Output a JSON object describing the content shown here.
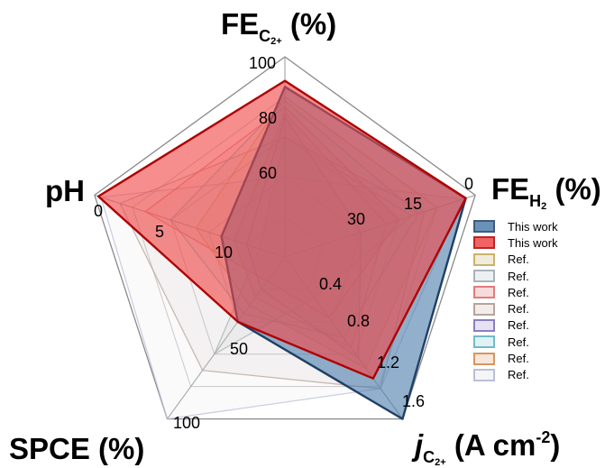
{
  "chart_data": {
    "type": "radar",
    "axes": [
      {
        "key": "fe_c2",
        "title_main": "FE",
        "title_sub": "C",
        "title_subsub": "2+",
        "title_tail": " (%)",
        "range": [
          0,
          100
        ],
        "tick_labels": [
          "60",
          "80",
          "100"
        ]
      },
      {
        "key": "fe_h2",
        "title_main": "FE",
        "title_sub": "H",
        "title_subsub": "2",
        "title_tail": " (%)",
        "range": [
          30,
          0
        ],
        "tick_labels": [
          "30",
          "15",
          "0"
        ]
      },
      {
        "key": "j_c2",
        "title_main": "j",
        "title_sub": "C",
        "title_subsub": "2+",
        "title_tail": " (A cm",
        "title_sup": "-2",
        "title_end": ")",
        "range": [
          0,
          1.6
        ],
        "tick_labels": [
          "0.4",
          "0.8",
          "1.2",
          "1.6"
        ]
      },
      {
        "key": "spce",
        "title_main": "SPCE (%)",
        "range": [
          0,
          100
        ],
        "tick_labels": [
          "50",
          "100"
        ]
      },
      {
        "key": "ph",
        "title_main": "pH",
        "range": [
          15,
          0
        ],
        "tick_labels": [
          "10",
          "5",
          "0"
        ]
      }
    ],
    "series": [
      {
        "name": "This work",
        "values": [
          85,
          1.5,
          1.6,
          40,
          10
        ],
        "fill": "#4f7fad",
        "stroke": "#1f3f66"
      },
      {
        "name": "This work",
        "values": [
          88,
          1.5,
          1.2,
          40,
          0.3
        ],
        "fill": "#f04848",
        "stroke": "#b00000"
      },
      {
        "name": "Ref.",
        "values": [
          80,
          6,
          1.1,
          30,
          8
        ],
        "fill": "#c8b070",
        "stroke": "#c9b26a"
      },
      {
        "name": "Ref.",
        "values": [
          60,
          10,
          0.4,
          60,
          13
        ],
        "fill": "#b9c2c9",
        "stroke": "#aab3ba"
      },
      {
        "name": "Ref.",
        "values": [
          75,
          12,
          0.6,
          15,
          4
        ],
        "fill": "#e07070",
        "stroke": "#e37b7b"
      },
      {
        "name": "Ref.",
        "values": [
          60,
          8,
          1.3,
          70,
          2
        ],
        "fill": "#c8b8b0",
        "stroke": "#b8a49a"
      },
      {
        "name": "Ref.",
        "values": [
          70,
          18,
          1.0,
          20,
          12
        ],
        "fill": "#9a8ac8",
        "stroke": "#8c7fc0"
      },
      {
        "name": "Ref.",
        "values": [
          78,
          9,
          0.8,
          35,
          6
        ],
        "fill": "#7fc8d0",
        "stroke": "#6fbcc6"
      },
      {
        "name": "Ref.",
        "values": [
          72,
          14,
          0.9,
          25,
          11
        ],
        "fill": "#e0a070",
        "stroke": "#d9955f"
      },
      {
        "name": "Ref.",
        "values": [
          40,
          2,
          1.3,
          100,
          0.5
        ],
        "fill": "#d8d8de",
        "stroke": "#b9bfd9"
      }
    ],
    "grid": true,
    "legend_position": "right"
  }
}
